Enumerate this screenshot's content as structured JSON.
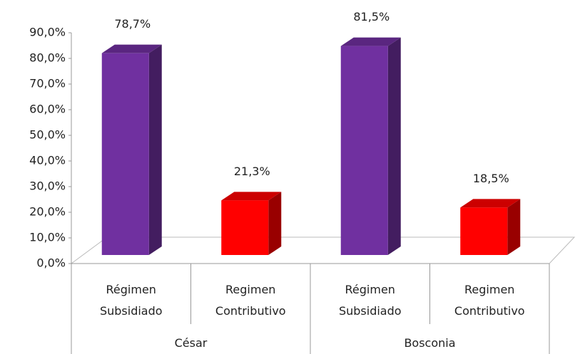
{
  "chart_data": {
    "type": "bar",
    "categories": [
      "Régimen Subsidiado",
      "Regimen Contributivo",
      "Régimen Subsidiado",
      "Regimen Contributivo"
    ],
    "groups": [
      "César",
      "Bosconia"
    ],
    "values": [
      78.7,
      21.3,
      81.5,
      18.5
    ],
    "value_labels": [
      "78,7%",
      "21,3%",
      "81,5%",
      "18,5%"
    ],
    "colors": [
      "#7030a0",
      "#ff0000",
      "#7030a0",
      "#ff0000"
    ],
    "ylim": [
      0,
      90
    ],
    "yticks": [
      {
        "value": 0,
        "label": "0,0%"
      },
      {
        "value": 10,
        "label": "10,0%"
      },
      {
        "value": 20,
        "label": "20,0%"
      },
      {
        "value": 30,
        "label": "30,0%"
      },
      {
        "value": 40,
        "label": "40,0%"
      },
      {
        "value": 50,
        "label": "50,0%"
      },
      {
        "value": 60,
        "label": "60,0%"
      },
      {
        "value": 70,
        "label": "70,0%"
      },
      {
        "value": 80,
        "label": "80,0%"
      },
      {
        "value": 90,
        "label": "90,0%"
      }
    ]
  }
}
